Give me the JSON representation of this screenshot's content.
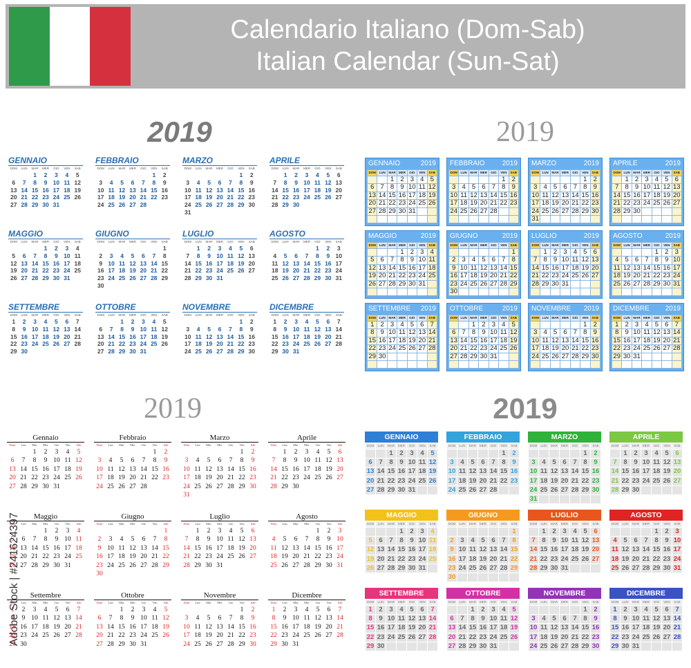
{
  "header": {
    "flag_colors": [
      "#2f9a4a",
      "#ffffff",
      "#d5303e"
    ],
    "title_it": "Calendario Italiano (Dom-Sab)",
    "title_en": "Italian Calendar (Sun-Sat)"
  },
  "year": "2019",
  "weekday_headers": [
    "DOM",
    "LUN",
    "MAR",
    "MER",
    "GIO",
    "VEN",
    "SAB"
  ],
  "weekday_headers_serif": [
    "Dom",
    "Lun",
    "Mar",
    "Mer",
    "Gio",
    "Ven",
    "Sab"
  ],
  "months_upper": [
    "GENNAIO",
    "FEBBRAIO",
    "MARZO",
    "APRILE",
    "MAGGIO",
    "GIUGNO",
    "LUGLIO",
    "AGOSTO",
    "SETTEMBRE",
    "OTTOBRE",
    "NOVEMBRE",
    "DICEMBRE"
  ],
  "months_title": [
    "Gennaio",
    "Febbraio",
    "Marzo",
    "Aprile",
    "Maggio",
    "Giugno",
    "Luglio",
    "Agosto",
    "Settembre",
    "Ottobre",
    "Novembre",
    "Dicembre"
  ],
  "month_start_weekday": [
    2,
    5,
    5,
    1,
    3,
    6,
    1,
    4,
    0,
    2,
    5,
    0
  ],
  "month_days": [
    31,
    28,
    31,
    30,
    31,
    30,
    31,
    31,
    30,
    31,
    30,
    31
  ],
  "month_colors": [
    "#2e7fd6",
    "#33a3dc",
    "#2fb33a",
    "#7cc843",
    "#f2c21a",
    "#f59a1f",
    "#e8561e",
    "#e02323",
    "#e8337d",
    "#d430a5",
    "#9333b8",
    "#3a52c4"
  ],
  "watermark": "Adobe Stock | #241624397"
}
